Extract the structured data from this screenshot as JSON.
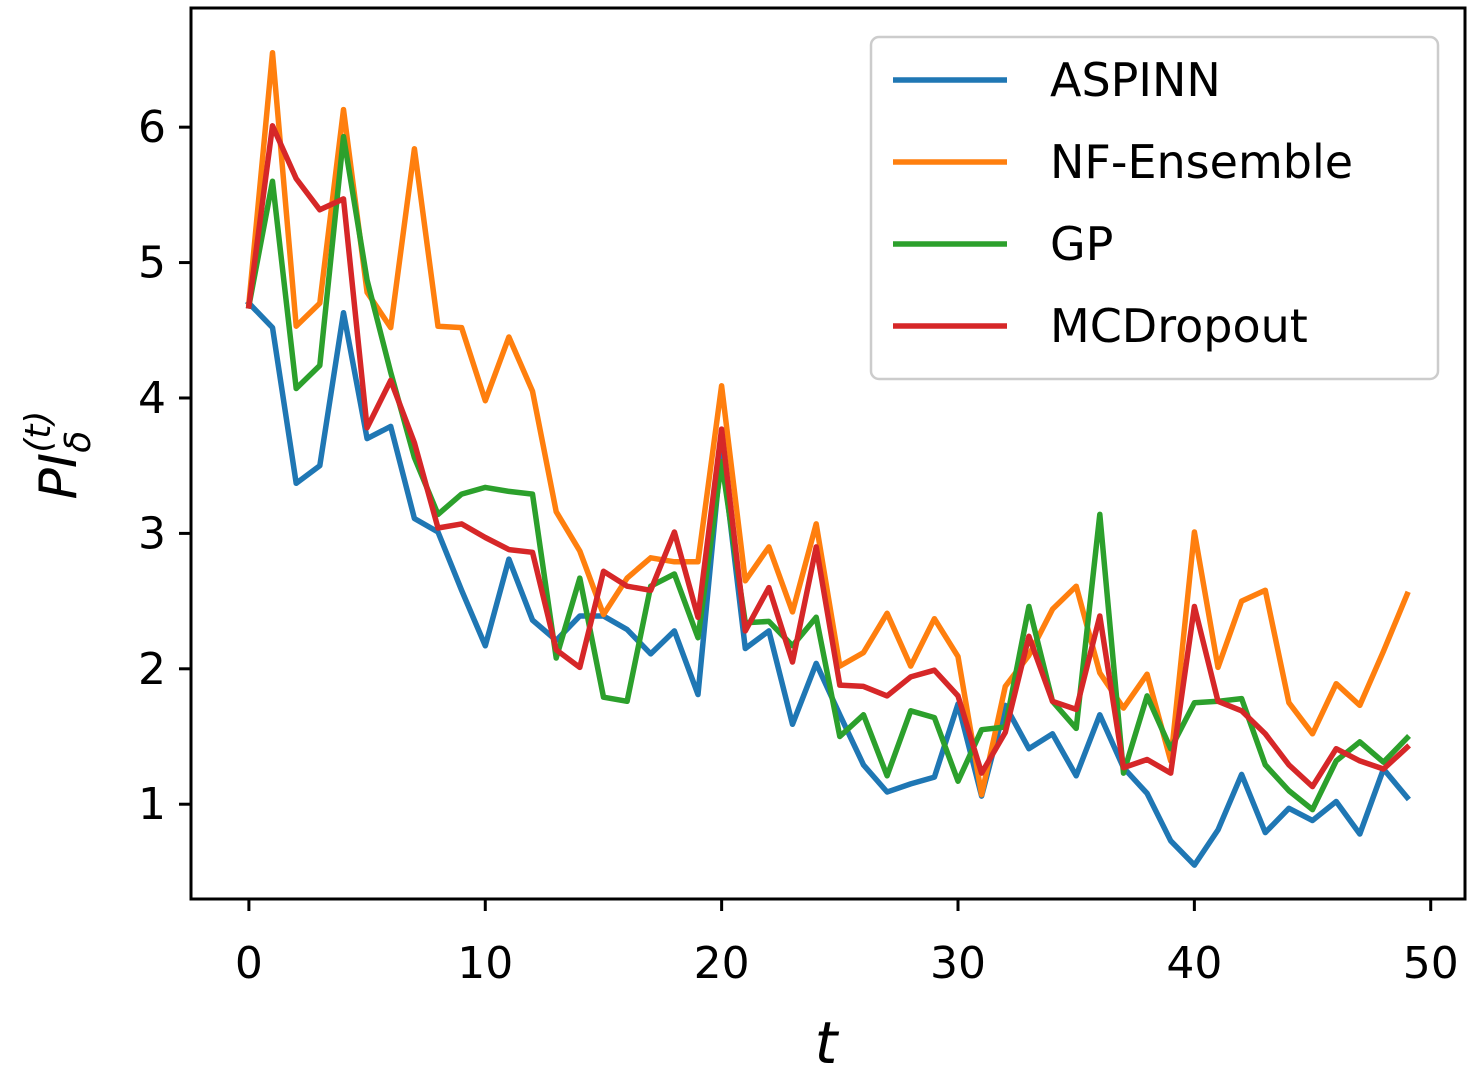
{
  "chart_data": {
    "type": "line",
    "xlabel": "t",
    "ylabel": {
      "base": "PI",
      "sub": "δ",
      "sup": "(t)"
    },
    "xlim": [
      -2.45,
      51.45
    ],
    "ylim": [
      0.3,
      6.88
    ],
    "xticks": [
      0,
      10,
      20,
      30,
      40,
      50
    ],
    "yticks": [
      1,
      2,
      3,
      4,
      5,
      6
    ],
    "grid": false,
    "legend_position": "top-right",
    "x": [
      0,
      1,
      2,
      3,
      4,
      5,
      6,
      7,
      8,
      9,
      10,
      11,
      12,
      13,
      14,
      15,
      16,
      17,
      18,
      19,
      20,
      21,
      22,
      23,
      24,
      25,
      26,
      27,
      28,
      29,
      30,
      31,
      32,
      33,
      34,
      35,
      36,
      37,
      38,
      39,
      40,
      41,
      42,
      43,
      44,
      45,
      46,
      47,
      48,
      49
    ],
    "series": [
      {
        "name": "ASPINN",
        "color": "#1f77b4",
        "values": [
          4.7,
          4.52,
          3.37,
          3.5,
          4.63,
          3.7,
          3.79,
          3.11,
          3.01,
          2.58,
          2.17,
          2.81,
          2.36,
          2.21,
          2.39,
          2.39,
          2.29,
          2.11,
          2.28,
          1.81,
          3.62,
          2.15,
          2.28,
          1.59,
          2.04,
          1.66,
          1.29,
          1.09,
          1.15,
          1.2,
          1.74,
          1.06,
          1.73,
          1.41,
          1.52,
          1.21,
          1.66,
          1.27,
          1.08,
          0.73,
          0.55,
          0.81,
          1.22,
          0.79,
          0.97,
          0.88,
          1.02,
          0.78,
          1.26,
          1.05
        ]
      },
      {
        "name": "NF-Ensemble",
        "color": "#ff7f0e",
        "values": [
          4.7,
          6.55,
          4.53,
          4.7,
          6.13,
          4.78,
          4.52,
          5.84,
          4.53,
          4.52,
          3.98,
          4.45,
          4.05,
          3.16,
          2.87,
          2.4,
          2.67,
          2.82,
          2.79,
          2.79,
          4.09,
          2.65,
          2.9,
          2.42,
          3.07,
          2.02,
          2.12,
          2.41,
          2.02,
          2.37,
          2.09,
          1.07,
          1.87,
          2.1,
          2.44,
          2.61,
          1.97,
          1.71,
          1.96,
          1.32,
          3.01,
          2.01,
          2.5,
          2.58,
          1.75,
          1.52,
          1.89,
          1.73,
          2.13,
          2.55
        ]
      },
      {
        "name": "GP",
        "color": "#2ca02c",
        "values": [
          4.68,
          5.6,
          4.07,
          4.24,
          5.93,
          4.87,
          4.19,
          3.56,
          3.14,
          3.29,
          3.34,
          3.31,
          3.29,
          2.08,
          2.67,
          1.79,
          1.76,
          2.61,
          2.7,
          2.23,
          3.53,
          2.34,
          2.35,
          2.17,
          2.38,
          1.5,
          1.66,
          1.21,
          1.69,
          1.64,
          1.17,
          1.55,
          1.57,
          2.46,
          1.76,
          1.56,
          3.14,
          1.23,
          1.8,
          1.41,
          1.75,
          1.76,
          1.78,
          1.29,
          1.1,
          0.96,
          1.32,
          1.46,
          1.31,
          1.49
        ]
      },
      {
        "name": "MCDropout",
        "color": "#d62728",
        "values": [
          4.68,
          6.01,
          5.62,
          5.39,
          5.47,
          3.78,
          4.13,
          3.67,
          3.04,
          3.07,
          2.97,
          2.88,
          2.86,
          2.14,
          2.01,
          2.72,
          2.61,
          2.58,
          3.01,
          2.38,
          3.77,
          2.28,
          2.6,
          2.05,
          2.9,
          1.88,
          1.87,
          1.8,
          1.94,
          1.99,
          1.8,
          1.23,
          1.53,
          2.24,
          1.76,
          1.7,
          2.39,
          1.27,
          1.33,
          1.23,
          2.46,
          1.76,
          1.69,
          1.52,
          1.29,
          1.13,
          1.41,
          1.32,
          1.26,
          1.42
        ]
      }
    ]
  }
}
